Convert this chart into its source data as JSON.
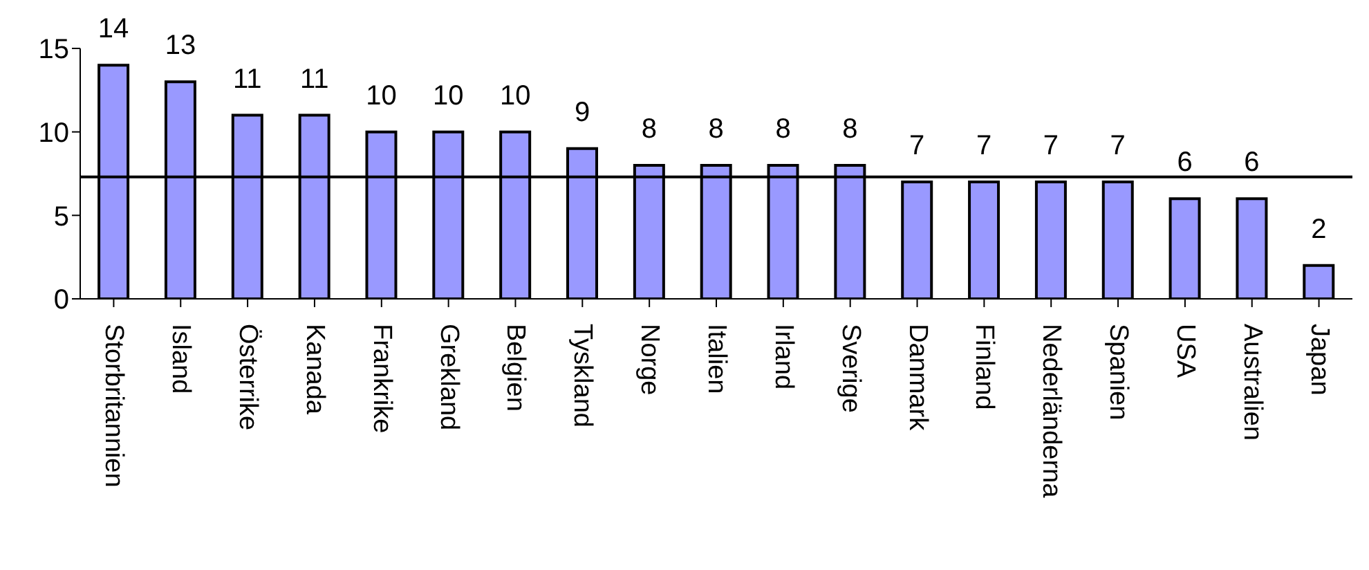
{
  "chart_data": {
    "type": "bar",
    "categories": [
      "Storbritannien",
      "Island",
      "Österrike",
      "Kanada",
      "Frankrike",
      "Grekland",
      "Belgien",
      "Tyskland",
      "Norge",
      "Italien",
      "Irland",
      "Sverige",
      "Danmark",
      "Finland",
      "Nederländerna",
      "Spanien",
      "USA",
      "Australien",
      "Japan"
    ],
    "values": [
      14,
      13,
      11,
      11,
      10,
      10,
      10,
      9,
      8,
      8,
      8,
      8,
      7,
      7,
      7,
      7,
      6,
      6,
      2
    ],
    "color": "#9999ff",
    "ylim": [
      0,
      15
    ],
    "yticks": [
      0,
      5,
      10,
      15
    ],
    "data_labels": true,
    "ref_lines": [
      {
        "axis": "y",
        "value": 7.3,
        "color": "#000000"
      }
    ]
  }
}
